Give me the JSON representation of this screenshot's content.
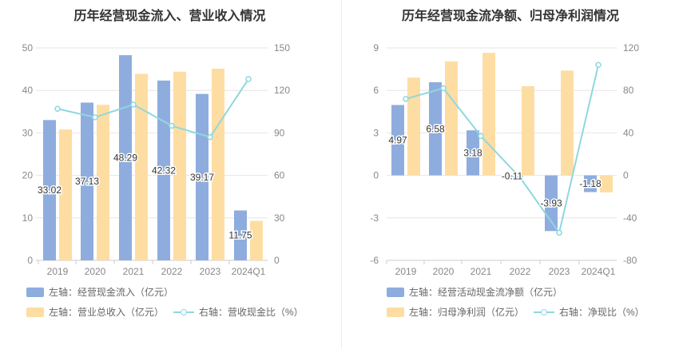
{
  "left": {
    "title": "历年经营现金流入、营业收入情况",
    "legend": [
      {
        "label": "左轴：经营现金流入（亿元）",
        "color": "#8eadde",
        "kind": "bar"
      },
      {
        "label": "左轴：营业总收入（亿元）",
        "color": "#fedda3",
        "kind": "bar"
      },
      {
        "label": "右轴：营收现金比（%）",
        "color": "#8fd7df",
        "kind": "line"
      }
    ]
  },
  "right": {
    "title": "历年经营现金流净额、归母净利润情况",
    "legend": [
      {
        "label": "左轴：经营活动现金流净额（亿元）",
        "color": "#8eadde",
        "kind": "bar"
      },
      {
        "label": "左轴：归母净利润（亿元）",
        "color": "#fedda3",
        "kind": "bar"
      },
      {
        "label": "右轴：净现比（%）",
        "color": "#8fd7df",
        "kind": "line"
      }
    ]
  },
  "chart_data": [
    {
      "type": "bar",
      "title": "历年经营现金流入、营业收入情况",
      "categories": [
        "2019",
        "2020",
        "2021",
        "2022",
        "2023",
        "2024Q1"
      ],
      "y_left": {
        "ticks": [
          0,
          10,
          20,
          30,
          40,
          50
        ],
        "ylim": [
          0,
          50
        ]
      },
      "y_right": {
        "ticks": [
          0,
          30,
          60,
          90,
          120,
          150
        ],
        "ylim": [
          0,
          150
        ]
      },
      "series": [
        {
          "name": "左轴：经营现金流入（亿元）",
          "axis": "left",
          "type": "bar",
          "color": "#8eadde",
          "values": [
            33.02,
            37.13,
            48.29,
            42.32,
            39.17,
            11.75
          ],
          "labels": [
            "33.02",
            "37.13",
            "48.29",
            "42.32",
            "39.17",
            "11.75"
          ]
        },
        {
          "name": "左轴：营业总收入（亿元）",
          "axis": "left",
          "type": "bar",
          "color": "#fedda3",
          "values": [
            30.8,
            36.6,
            43.9,
            44.4,
            45.1,
            9.3
          ]
        },
        {
          "name": "右轴：营收现金比（%）",
          "axis": "right",
          "type": "line",
          "color": "#8fd7df",
          "values": [
            107,
            101,
            110,
            95,
            87,
            128
          ]
        }
      ],
      "grid": true
    },
    {
      "type": "bar",
      "title": "历年经营现金流净额、归母净利润情况",
      "categories": [
        "2019",
        "2020",
        "2021",
        "2022",
        "2023",
        "2024Q1"
      ],
      "y_left": {
        "ticks": [
          -6,
          -3,
          0,
          3,
          6,
          9
        ],
        "ylim": [
          -6,
          9
        ]
      },
      "y_right": {
        "ticks": [
          -80,
          -40,
          0,
          40,
          80,
          120
        ],
        "ylim": [
          -80,
          120
        ]
      },
      "series": [
        {
          "name": "左轴：经营活动现金流净额（亿元）",
          "axis": "left",
          "type": "bar",
          "color": "#8eadde",
          "values": [
            4.97,
            6.58,
            3.18,
            -0.11,
            -3.93,
            -1.18
          ],
          "labels": [
            "4.97",
            "6.58",
            "3.18",
            "-0.11",
            "-3.93",
            "-1.18"
          ]
        },
        {
          "name": "左轴：归母净利润（亿元）",
          "axis": "left",
          "type": "bar",
          "color": "#fedda3",
          "values": [
            6.9,
            8.05,
            8.65,
            6.3,
            7.4,
            -1.2
          ]
        },
        {
          "name": "右轴：净现比（%）",
          "axis": "right",
          "type": "line",
          "color": "#8fd7df",
          "values": [
            72,
            82,
            37,
            -2,
            -54,
            104
          ]
        }
      ],
      "grid": true
    }
  ]
}
